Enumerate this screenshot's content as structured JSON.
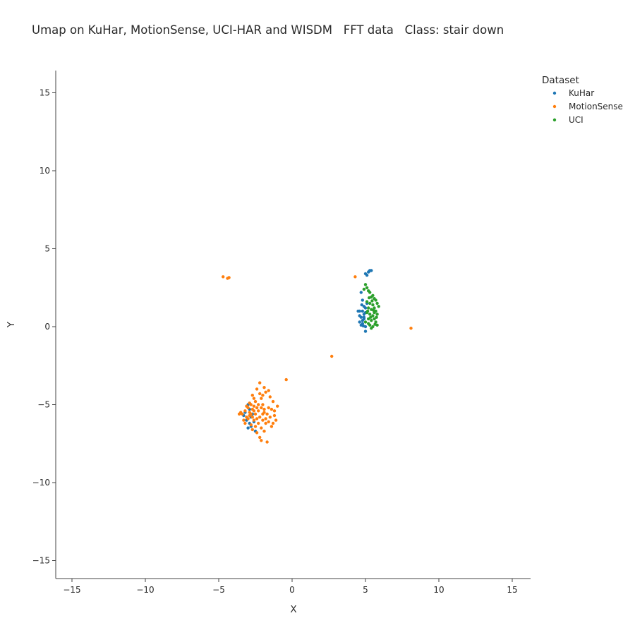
{
  "chart_data": {
    "type": "scatter",
    "title": "Umap on KuHar, MotionSense, UCI-HAR and WISDM   FFT data   Class: stair down",
    "xlabel": "X",
    "ylabel": "Y",
    "xlim": [
      -16,
      16
    ],
    "ylim": [
      -16,
      16
    ],
    "xticks": [
      -15,
      -10,
      -5,
      0,
      5,
      10,
      15
    ],
    "yticks": [
      -15,
      -10,
      -5,
      0,
      5,
      10,
      15
    ],
    "xtick_labels": [
      "−15",
      "−10",
      "−5",
      "0",
      "5",
      "10",
      "15"
    ],
    "ytick_labels": [
      "−15",
      "−10",
      "−5",
      "0",
      "5",
      "10",
      "15"
    ],
    "grid": false,
    "legend": {
      "title": "Dataset",
      "placement": "top-right"
    },
    "series": [
      {
        "name": "KuHar",
        "color": "#1f77b4",
        "points": [
          [
            5.0,
            3.4
          ],
          [
            5.2,
            3.5
          ],
          [
            5.3,
            3.6
          ],
          [
            5.4,
            3.6
          ],
          [
            5.1,
            3.3
          ],
          [
            5.25,
            3.55
          ],
          [
            4.7,
            2.2
          ],
          [
            4.8,
            1.7
          ],
          [
            4.6,
            1.0
          ],
          [
            4.8,
            1.0
          ],
          [
            4.9,
            0.8
          ],
          [
            4.7,
            0.6
          ],
          [
            4.9,
            0.5
          ],
          [
            4.6,
            0.3
          ],
          [
            4.8,
            0.2
          ],
          [
            5.0,
            0.0
          ],
          [
            4.9,
            1.3
          ],
          [
            5.0,
            1.2
          ],
          [
            4.5,
            1.0
          ],
          [
            4.7,
            0.1
          ],
          [
            5.0,
            0.9
          ],
          [
            4.8,
            0.4
          ],
          [
            5.1,
            1.5
          ],
          [
            4.6,
            0.7
          ],
          [
            5.0,
            -0.3
          ],
          [
            4.9,
            0.6
          ],
          [
            4.75,
            1.4
          ],
          [
            4.85,
            0.05
          ],
          [
            -3.0,
            -5.0
          ],
          [
            -2.9,
            -5.3
          ],
          [
            -3.2,
            -5.5
          ],
          [
            -2.8,
            -5.8
          ],
          [
            -3.1,
            -6.0
          ],
          [
            -2.9,
            -6.2
          ],
          [
            -3.0,
            -6.5
          ],
          [
            -2.7,
            -5.6
          ],
          [
            -3.3,
            -5.7
          ],
          [
            -2.6,
            -6.1
          ],
          [
            -2.5,
            -6.7
          ],
          [
            -2.8,
            -6.4
          ]
        ]
      },
      {
        "name": "MotionSense",
        "color": "#ff7f0e",
        "points": [
          [
            -4.7,
            3.2
          ],
          [
            -4.4,
            3.1
          ],
          [
            -4.3,
            3.15
          ],
          [
            4.3,
            3.2
          ],
          [
            8.1,
            -0.1
          ],
          [
            2.7,
            -1.9
          ],
          [
            -0.4,
            -3.4
          ],
          [
            -2.2,
            -3.6
          ],
          [
            -1.9,
            -3.9
          ],
          [
            -1.8,
            -4.2
          ],
          [
            -2.4,
            -4.0
          ],
          [
            -1.5,
            -4.5
          ],
          [
            -1.3,
            -4.8
          ],
          [
            -2.7,
            -4.4
          ],
          [
            -2.1,
            -4.6
          ],
          [
            -1.0,
            -5.1
          ],
          [
            -1.2,
            -5.4
          ],
          [
            -1.6,
            -5.2
          ],
          [
            -2.0,
            -5.0
          ],
          [
            -2.5,
            -4.8
          ],
          [
            -2.8,
            -5.0
          ],
          [
            -3.0,
            -5.2
          ],
          [
            -3.2,
            -5.4
          ],
          [
            -3.4,
            -5.6
          ],
          [
            -3.1,
            -5.8
          ],
          [
            -2.9,
            -5.5
          ],
          [
            -2.7,
            -5.3
          ],
          [
            -2.5,
            -5.6
          ],
          [
            -2.3,
            -5.4
          ],
          [
            -2.2,
            -5.8
          ],
          [
            -2.0,
            -5.6
          ],
          [
            -1.8,
            -5.9
          ],
          [
            -1.6,
            -6.1
          ],
          [
            -1.1,
            -6.0
          ],
          [
            -1.4,
            -6.4
          ],
          [
            -1.8,
            -6.2
          ],
          [
            -2.1,
            -6.5
          ],
          [
            -2.3,
            -6.2
          ],
          [
            -2.6,
            -6.0
          ],
          [
            -2.8,
            -6.3
          ],
          [
            -3.0,
            -5.9
          ],
          [
            -3.3,
            -6.0
          ],
          [
            -2.4,
            -6.8
          ],
          [
            -2.2,
            -7.1
          ],
          [
            -2.1,
            -7.3
          ],
          [
            -1.7,
            -7.4
          ],
          [
            -2.6,
            -5.1
          ],
          [
            -2.4,
            -5.2
          ],
          [
            -1.9,
            -5.3
          ],
          [
            -2.0,
            -6.0
          ],
          [
            -2.7,
            -5.8
          ],
          [
            -3.5,
            -5.5
          ],
          [
            -2.9,
            -5.7
          ],
          [
            -2.6,
            -5.4
          ],
          [
            -1.7,
            -5.6
          ],
          [
            -1.5,
            -5.8
          ],
          [
            -1.3,
            -6.2
          ],
          [
            -2.5,
            -6.4
          ],
          [
            -1.9,
            -6.7
          ],
          [
            -2.2,
            -4.3
          ],
          [
            -1.6,
            -4.1
          ],
          [
            -2.9,
            -4.9
          ],
          [
            -3.1,
            -5.1
          ],
          [
            -2.3,
            -5.0
          ],
          [
            -2.8,
            -5.6
          ],
          [
            -2.4,
            -5.9
          ],
          [
            -2.1,
            -5.2
          ],
          [
            -1.9,
            -5.5
          ],
          [
            -3.2,
            -6.2
          ],
          [
            -2.7,
            -6.6
          ],
          [
            -1.4,
            -5.3
          ],
          [
            -1.2,
            -5.7
          ],
          [
            -3.6,
            -5.6
          ],
          [
            -2.0,
            -4.4
          ],
          [
            -2.6,
            -4.6
          ]
        ]
      },
      {
        "name": "UCI",
        "color": "#2ca02c",
        "points": [
          [
            5.0,
            2.7
          ],
          [
            5.1,
            2.5
          ],
          [
            5.2,
            2.3
          ],
          [
            5.3,
            2.2
          ],
          [
            4.9,
            2.4
          ],
          [
            5.5,
            2.0
          ],
          [
            5.6,
            1.8
          ],
          [
            5.4,
            1.9
          ],
          [
            5.7,
            1.7
          ],
          [
            5.3,
            1.5
          ],
          [
            5.5,
            1.4
          ],
          [
            5.8,
            1.5
          ],
          [
            5.2,
            1.2
          ],
          [
            5.4,
            1.1
          ],
          [
            5.6,
            1.2
          ],
          [
            5.7,
            1.0
          ],
          [
            5.1,
            0.9
          ],
          [
            5.3,
            0.8
          ],
          [
            5.5,
            0.7
          ],
          [
            5.8,
            0.8
          ],
          [
            5.2,
            0.5
          ],
          [
            5.4,
            0.4
          ],
          [
            5.6,
            0.5
          ],
          [
            5.7,
            0.3
          ],
          [
            5.3,
            0.1
          ],
          [
            5.5,
            0.0
          ],
          [
            5.8,
            0.1
          ],
          [
            5.4,
            -0.1
          ],
          [
            5.0,
            0.3
          ],
          [
            5.1,
            1.6
          ],
          [
            5.6,
            0.9
          ],
          [
            5.2,
            0.2
          ],
          [
            5.9,
            1.3
          ],
          [
            5.45,
            1.65
          ],
          [
            5.35,
            0.6
          ],
          [
            5.65,
            0.15
          ],
          [
            5.15,
            1.0
          ],
          [
            5.75,
            0.6
          ],
          [
            5.25,
            1.85
          ],
          [
            5.55,
            1.05
          ]
        ]
      }
    ]
  }
}
